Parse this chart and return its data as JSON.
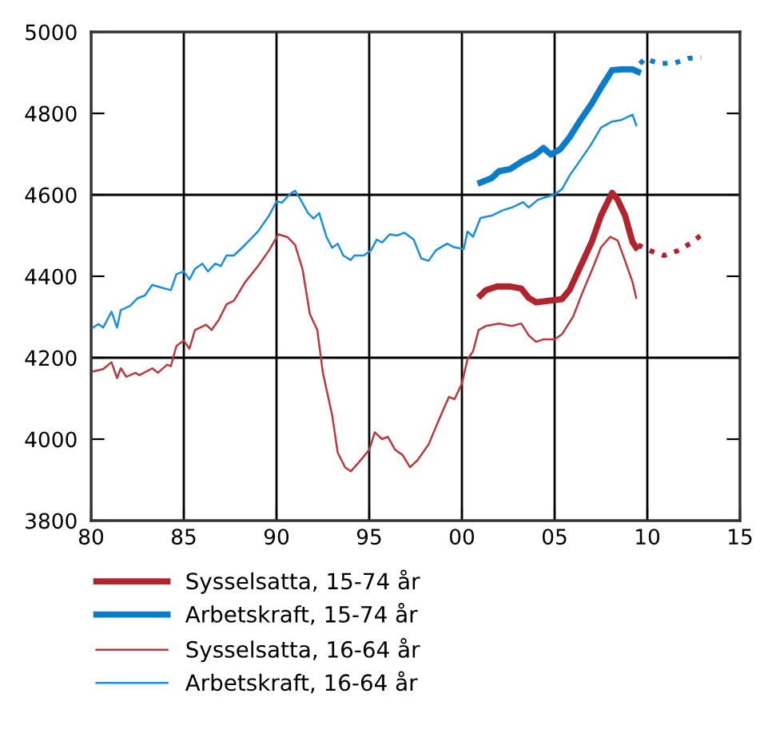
{
  "chart_data": {
    "type": "line",
    "xlim": [
      1980,
      2015
    ],
    "xticks": [
      {
        "value": 1980,
        "label": "80"
      },
      {
        "value": 1985,
        "label": "85"
      },
      {
        "value": 1990,
        "label": "90"
      },
      {
        "value": 1995,
        "label": "95"
      },
      {
        "value": 2000,
        "label": "00"
      },
      {
        "value": 2005,
        "label": "05"
      },
      {
        "value": 2010,
        "label": "10"
      },
      {
        "value": 2015,
        "label": "15"
      }
    ],
    "ylim": [
      3800,
      5000
    ],
    "yticks": [
      3800,
      4000,
      4200,
      4400,
      4600,
      4800,
      5000
    ],
    "grid": "x",
    "ref_lines": [
      {
        "axis": "y",
        "value": 4200,
        "label": null,
        "color": "#000000"
      },
      {
        "axis": "y",
        "value": 4600,
        "label": null,
        "color": "#000000"
      }
    ],
    "legend": "bottom",
    "line_style": "solid",
    "series": [
      {
        "name": "Sysselsatta, 15-74 år",
        "color": "#b0242e",
        "x": [
          2001.0,
          2001.3,
          2001.9,
          2002.6,
          2003.2,
          2003.6,
          2004.0,
          2004.7,
          2005.4,
          2005.8,
          2006.4,
          2007.0,
          2007.5,
          2008.1,
          2008.4,
          2008.8,
          2009.2,
          2009.4
        ],
        "values": [
          4353,
          4366,
          4375,
          4375,
          4370,
          4347,
          4336,
          4340,
          4344,
          4366,
          4425,
          4484,
          4549,
          4605,
          4588,
          4549,
          4484,
          4471
        ]
      },
      {
        "name": "Arbetskraft, 15-74 år",
        "color": "#0a7cc8",
        "x": [
          2001.0,
          2001.6,
          2002.0,
          2002.6,
          2003.3,
          2003.9,
          2004.4,
          2004.8,
          2005.3,
          2005.8,
          2006.4,
          2007.0,
          2007.5,
          2008.1,
          2008.6,
          2009.2,
          2009.5
        ],
        "values": [
          4630,
          4641,
          4658,
          4663,
          4684,
          4697,
          4715,
          4699,
          4712,
          4741,
          4784,
          4824,
          4863,
          4906,
          4908,
          4908,
          4902
        ]
      },
      {
        "name": "Sysselsatta, 16-64 år",
        "color": "#b83a40",
        "x": [
          1980.1,
          1980.65,
          1981.1,
          1981.4,
          1981.6,
          1981.9,
          1982.4,
          1982.6,
          1983.3,
          1983.6,
          1984.1,
          1984.3,
          1984.6,
          1985.0,
          1985.3,
          1985.6,
          1986.2,
          1986.5,
          1986.9,
          1987.3,
          1987.7,
          1988.3,
          1989.0,
          1989.6,
          1990.1,
          1990.6,
          1991.0,
          1991.4,
          1991.8,
          1992.2,
          1992.5,
          1993.0,
          1993.3,
          1993.7,
          1994.0,
          1994.4,
          1995.0,
          1995.3,
          1995.7,
          1996.0,
          1996.4,
          1996.8,
          1997.2,
          1997.6,
          1998.2,
          1998.8,
          1999.3,
          1999.6,
          2000.0,
          2000.3,
          2000.6,
          2000.9,
          2001.3,
          2002.0,
          2002.7,
          2003.2,
          2003.6,
          2004.0,
          2004.4,
          2005.0,
          2005.4,
          2006.0,
          2006.5,
          2007.1,
          2007.5,
          2008.0,
          2008.4,
          2008.8,
          2009.2,
          2009.4
        ],
        "values": [
          4166,
          4172,
          4189,
          4150,
          4174,
          4153,
          4163,
          4157,
          4174,
          4163,
          4183,
          4179,
          4229,
          4242,
          4222,
          4268,
          4281,
          4268,
          4294,
          4331,
          4340,
          4385,
          4425,
          4464,
          4503,
          4496,
          4477,
          4418,
          4307,
          4268,
          4163,
          4059,
          3967,
          3931,
          3921,
          3941,
          3974,
          4017,
          4000,
          4006,
          3974,
          3961,
          3931,
          3948,
          3987,
          4052,
          4104,
          4098,
          4137,
          4196,
          4216,
          4268,
          4278,
          4284,
          4278,
          4284,
          4255,
          4239,
          4245,
          4245,
          4258,
          4301,
          4360,
          4425,
          4471,
          4497,
          4488,
          4438,
          4386,
          4347
        ]
      },
      {
        "name": "Arbetskraft, 16-64 år",
        "color": "#1a8fdb",
        "x": [
          1980.1,
          1980.4,
          1980.65,
          1981.1,
          1981.4,
          1981.6,
          1982.1,
          1982.5,
          1982.9,
          1983.3,
          1983.8,
          1984.3,
          1984.6,
          1985.0,
          1985.3,
          1985.6,
          1986.0,
          1986.3,
          1986.7,
          1987.0,
          1987.3,
          1987.7,
          1988.3,
          1989.0,
          1989.6,
          1990.0,
          1990.3,
          1990.7,
          1991.0,
          1991.3,
          1991.7,
          1992.0,
          1992.3,
          1992.7,
          1993.0,
          1993.3,
          1993.6,
          1994.0,
          1994.2,
          1994.7,
          1995.1,
          1995.4,
          1995.7,
          1996.1,
          1996.5,
          1996.9,
          1997.4,
          1997.8,
          1998.2,
          1998.6,
          1999.2,
          1999.6,
          2000.1,
          2000.3,
          2000.6,
          2001.0,
          2001.6,
          2002.2,
          2002.7,
          2003.3,
          2003.6,
          2004.1,
          2005.0,
          2005.4,
          2005.8,
          2006.4,
          2007.0,
          2007.5,
          2008.1,
          2008.6,
          2009.2,
          2009.4
        ],
        "values": [
          4274,
          4283,
          4274,
          4313,
          4274,
          4317,
          4327,
          4346,
          4353,
          4379,
          4372,
          4366,
          4405,
          4412,
          4392,
          4418,
          4431,
          4412,
          4431,
          4425,
          4451,
          4451,
          4477,
          4510,
          4549,
          4584,
          4581,
          4601,
          4610,
          4588,
          4555,
          4542,
          4555,
          4496,
          4470,
          4480,
          4451,
          4440,
          4451,
          4451,
          4464,
          4490,
          4483,
          4503,
          4500,
          4507,
          4490,
          4444,
          4438,
          4464,
          4480,
          4471,
          4467,
          4510,
          4497,
          4543,
          4549,
          4562,
          4569,
          4582,
          4569,
          4588,
          4601,
          4614,
          4647,
          4686,
          4726,
          4765,
          4780,
          4784,
          4797,
          4771
        ]
      },
      {
        "color": "#b0242e",
        "line_style": "dotted",
        "x": [
          2009.5,
          2010.2,
          2010.9,
          2011.6,
          2012.3,
          2012.9
        ],
        "values": [
          4477,
          4462,
          4451,
          4462,
          4480,
          4501
        ]
      },
      {
        "color": "#0a7cc8",
        "line_style": "dotted",
        "x": [
          2009.6,
          2009.9,
          2010.6,
          2011.5,
          2012.2,
          2012.9
        ],
        "values": [
          4922,
          4935,
          4922,
          4924,
          4935,
          4937
        ]
      }
    ]
  }
}
